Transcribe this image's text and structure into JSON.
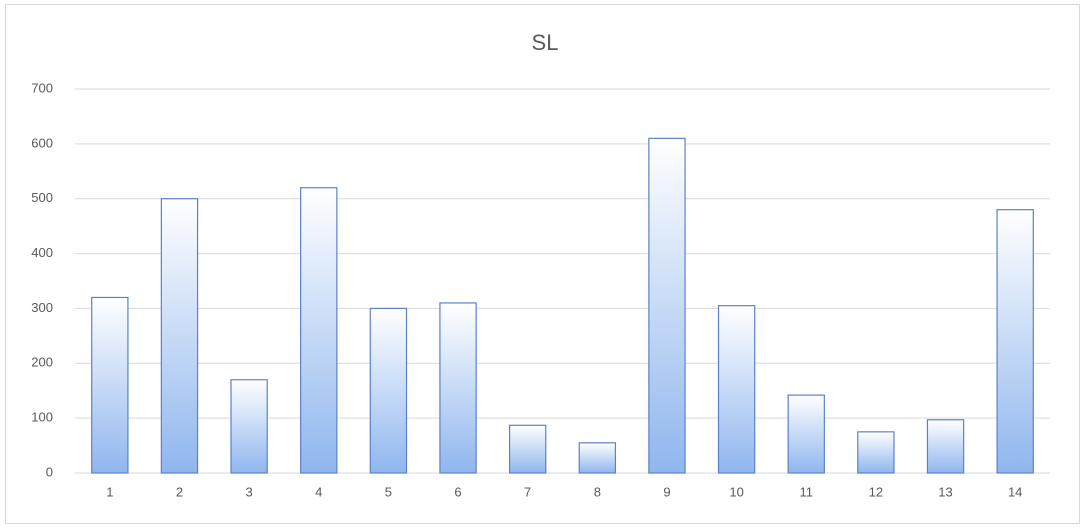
{
  "chart_data": {
    "type": "bar",
    "title": "SL",
    "categories": [
      "1",
      "2",
      "3",
      "4",
      "5",
      "6",
      "7",
      "8",
      "9",
      "10",
      "11",
      "12",
      "13",
      "14"
    ],
    "values": [
      320,
      500,
      170,
      520,
      300,
      310,
      87,
      55,
      610,
      305,
      142,
      75,
      97,
      480
    ],
    "color": "#8fb6ee",
    "ylim": [
      0,
      700
    ],
    "yticks": [
      0,
      100,
      200,
      300,
      400,
      500,
      600,
      700
    ],
    "grid": true
  }
}
